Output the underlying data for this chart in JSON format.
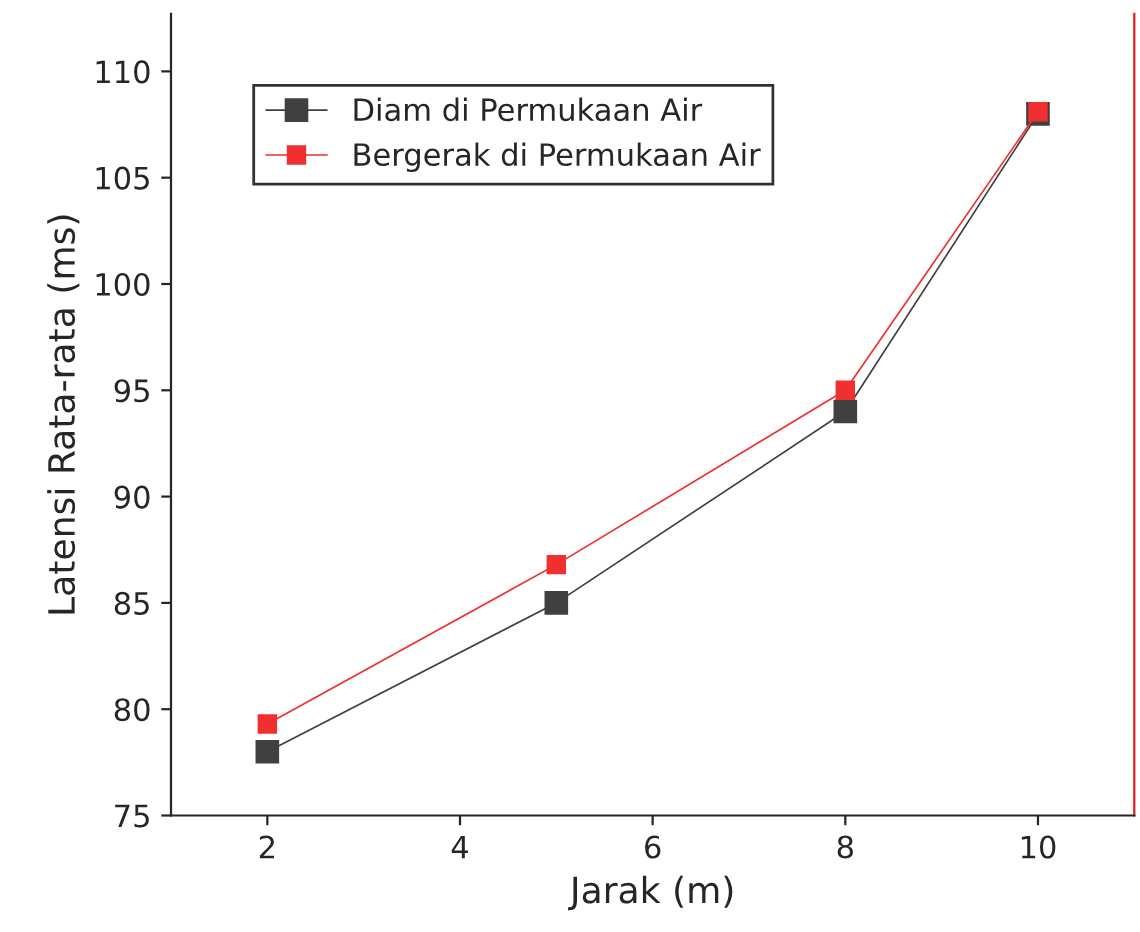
{
  "chart_data": {
    "type": "line",
    "xlabel": "Jarak (m)",
    "ylabel": "Latensi Rata-rata (ms)",
    "x": [
      2,
      5,
      8,
      10
    ],
    "series": [
      {
        "name": "Diam di Permukaan Air",
        "color": "#404040",
        "values": [
          78,
          85,
          94,
          108
        ]
      },
      {
        "name": "Bergerak di Permukaan Air",
        "color": "#f03030",
        "values": [
          79.3,
          86.8,
          95,
          108.1
        ]
      }
    ],
    "xlim": [
      1,
      11
    ],
    "xticks": [
      2,
      4,
      6,
      8,
      10
    ],
    "ylim": [
      75,
      112.7
    ],
    "yticks": [
      75,
      80,
      85,
      90,
      95,
      100,
      105,
      110
    ],
    "marker": "square",
    "line_style": "solid",
    "grid": false,
    "legend": "top left"
  }
}
